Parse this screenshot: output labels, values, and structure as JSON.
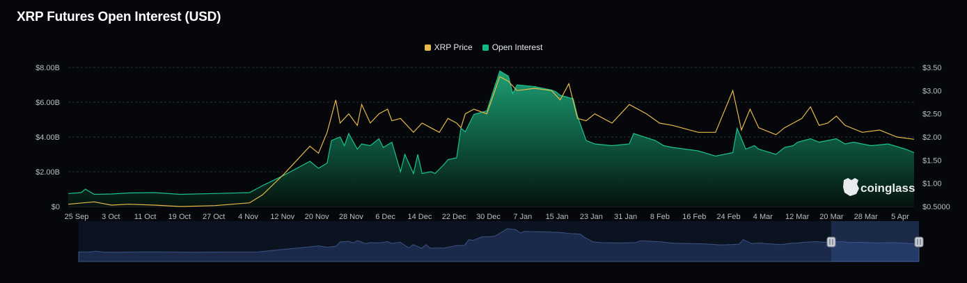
{
  "title": "XRP Futures Open Interest (USD)",
  "legend": [
    {
      "label": "XRP Price",
      "color": "#e9b949"
    },
    {
      "label": "Open Interest",
      "color": "#12b886"
    }
  ],
  "watermark": "coinglass",
  "chart_data": {
    "type": "area",
    "title": "XRP Futures Open Interest (USD)",
    "grid": true,
    "legend_position": "top-center",
    "x_ticks": [
      "25 Sep",
      "3 Oct",
      "11 Oct",
      "19 Oct",
      "27 Oct",
      "4 Nov",
      "12 Nov",
      "20 Nov",
      "28 Nov",
      "6 Dec",
      "14 Dec",
      "22 Dec",
      "30 Dec",
      "7 Jan",
      "15 Jan",
      "23 Jan",
      "31 Jan",
      "8 Feb",
      "16 Feb",
      "24 Feb",
      "4 Mar",
      "12 Mar",
      "20 Mar",
      "28 Mar",
      "5 Apr"
    ],
    "y_left_ticks": [
      "$0",
      "$2.00B",
      "$4.00B",
      "$6.00B",
      "$8.00B"
    ],
    "y_right_ticks": [
      "$0.5000",
      "$1.00",
      "$1.50",
      "$2.00",
      "$2.50",
      "$3.00",
      "$3.50"
    ],
    "y_left_range": [
      0,
      8
    ],
    "y_right_range": [
      0.5,
      3.5
    ],
    "series": [
      {
        "name": "Open Interest",
        "unit": "USD billions",
        "axis": "left",
        "x": [
          0,
          3,
          4,
          6,
          10,
          14,
          20,
          26,
          34,
          42,
          45,
          50,
          56,
          58,
          60,
          61,
          63,
          64,
          65,
          67,
          68,
          70,
          72,
          73,
          75,
          77,
          78,
          80,
          81,
          82,
          84,
          85,
          87,
          88,
          90,
          91,
          92,
          94,
          97,
          100,
          102,
          103,
          104,
          108,
          112,
          113,
          114,
          117,
          118,
          120,
          122,
          126,
          130,
          131,
          136,
          138,
          140,
          146,
          150,
          154,
          155,
          157,
          159,
          160,
          164,
          166,
          168,
          169,
          172,
          174,
          176,
          178,
          180,
          182,
          186,
          190,
          194,
          196
        ],
        "values": [
          0.75,
          0.8,
          1.0,
          0.7,
          0.72,
          0.78,
          0.8,
          0.7,
          0.75,
          0.8,
          1.2,
          1.8,
          2.6,
          2.2,
          2.5,
          3.8,
          4.0,
          3.5,
          4.2,
          3.3,
          3.6,
          3.5,
          3.9,
          3.4,
          3.7,
          2.0,
          3.0,
          1.9,
          3.0,
          1.9,
          2.0,
          1.9,
          2.4,
          2.7,
          2.8,
          4.5,
          4.3,
          5.3,
          5.5,
          7.8,
          7.5,
          6.5,
          7.0,
          6.9,
          6.7,
          6.6,
          6.4,
          6.2,
          5.2,
          3.8,
          3.6,
          3.5,
          3.6,
          4.2,
          3.8,
          3.5,
          3.4,
          3.2,
          2.9,
          3.1,
          4.5,
          3.3,
          3.5,
          3.3,
          3.0,
          3.4,
          3.5,
          3.7,
          3.9,
          3.7,
          3.8,
          3.9,
          3.6,
          3.7,
          3.5,
          3.6,
          3.3,
          3.1
        ]
      },
      {
        "name": "XRP Price",
        "unit": "USD",
        "axis": "right",
        "x": [
          0,
          6,
          10,
          14,
          20,
          26,
          34,
          42,
          45,
          50,
          56,
          58,
          60,
          62,
          63,
          65,
          67,
          68,
          70,
          72,
          74,
          75,
          77,
          80,
          82,
          84,
          86,
          88,
          90,
          91,
          92,
          94,
          97,
          100,
          102,
          104,
          108,
          112,
          114,
          116,
          118,
          120,
          122,
          126,
          130,
          134,
          137,
          140,
          146,
          150,
          154,
          156,
          158,
          160,
          164,
          166,
          168,
          170,
          172,
          174,
          176,
          178,
          180,
          184,
          188,
          192,
          196
        ],
        "values": [
          0.55,
          0.6,
          0.53,
          0.55,
          0.53,
          0.5,
          0.52,
          0.58,
          0.75,
          1.2,
          1.8,
          1.65,
          2.1,
          2.8,
          2.3,
          2.5,
          2.25,
          2.7,
          2.3,
          2.5,
          2.6,
          2.35,
          2.4,
          2.1,
          2.3,
          2.2,
          2.1,
          2.4,
          2.3,
          2.2,
          2.5,
          2.6,
          2.5,
          3.3,
          3.2,
          3.0,
          3.05,
          3.0,
          2.8,
          3.15,
          2.4,
          2.35,
          2.5,
          2.3,
          2.7,
          2.5,
          2.3,
          2.25,
          2.1,
          2.1,
          3.0,
          2.15,
          2.6,
          2.2,
          2.05,
          2.2,
          2.3,
          2.4,
          2.65,
          2.25,
          2.3,
          2.45,
          2.25,
          2.1,
          2.15,
          2.0,
          1.95
        ]
      }
    ]
  }
}
